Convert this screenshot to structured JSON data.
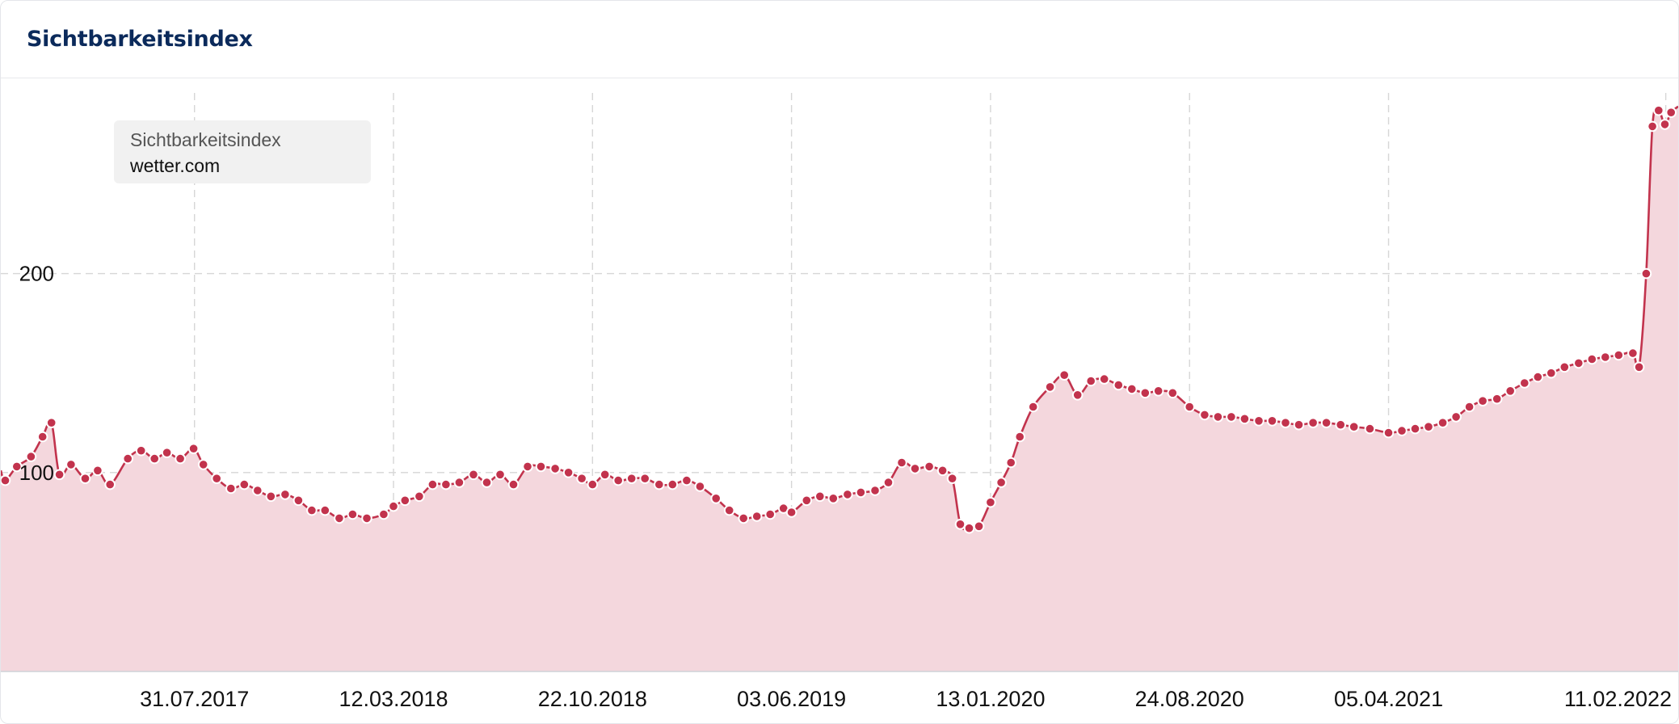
{
  "card": {
    "title": "Sichtbarkeitsindex"
  },
  "legend": {
    "label": "Sichtbarkeitsindex",
    "site": "wetter.com"
  },
  "colors": {
    "line": "#c2334d",
    "fill": "#f4d7dd",
    "grid": "#d6d6d6",
    "title": "#0b2a5b"
  },
  "chart_data": {
    "type": "area",
    "ylim": [
      0,
      290
    ],
    "y_ticks": [
      100,
      200
    ],
    "x_ticks": [
      "31.07.2017",
      "12.03.2018",
      "22.10.2018",
      "03.06.2019",
      "13.01.2020",
      "24.08.2020",
      "05.04.2021",
      "11.02.2022"
    ],
    "x_range": [
      "2016-12-25",
      "2022-02-25"
    ],
    "grid": true,
    "legend_position": "top-left",
    "series": [
      {
        "name": "wetter.com",
        "points": [
          [
            "2016-12-25",
            101
          ],
          [
            "2016-12-30",
            96
          ],
          [
            "2017-01-12",
            103
          ],
          [
            "2017-01-28",
            108
          ],
          [
            "2017-02-10",
            118
          ],
          [
            "2017-02-20",
            125
          ],
          [
            "2017-03-01",
            99
          ],
          [
            "2017-03-14",
            104
          ],
          [
            "2017-03-30",
            97
          ],
          [
            "2017-04-13",
            101
          ],
          [
            "2017-04-27",
            94
          ],
          [
            "2017-05-17",
            107
          ],
          [
            "2017-06-01",
            111
          ],
          [
            "2017-06-16",
            107
          ],
          [
            "2017-06-30",
            110
          ],
          [
            "2017-07-15",
            107
          ],
          [
            "2017-07-30",
            112
          ],
          [
            "2017-08-10",
            104
          ],
          [
            "2017-08-25",
            97
          ],
          [
            "2017-09-10",
            92
          ],
          [
            "2017-09-25",
            94
          ],
          [
            "2017-10-10",
            91
          ],
          [
            "2017-10-25",
            88
          ],
          [
            "2017-11-10",
            89
          ],
          [
            "2017-11-25",
            86
          ],
          [
            "2017-12-10",
            81
          ],
          [
            "2017-12-25",
            81
          ],
          [
            "2018-01-10",
            77
          ],
          [
            "2018-01-25",
            79
          ],
          [
            "2018-02-10",
            77
          ],
          [
            "2018-03-01",
            79
          ],
          [
            "2018-03-12",
            83
          ],
          [
            "2018-03-25",
            86
          ],
          [
            "2018-04-10",
            88
          ],
          [
            "2018-04-25",
            94
          ],
          [
            "2018-05-10",
            94
          ],
          [
            "2018-05-25",
            95
          ],
          [
            "2018-06-10",
            99
          ],
          [
            "2018-06-25",
            95
          ],
          [
            "2018-07-10",
            99
          ],
          [
            "2018-07-25",
            94
          ],
          [
            "2018-08-10",
            103
          ],
          [
            "2018-08-25",
            103
          ],
          [
            "2018-09-10",
            102
          ],
          [
            "2018-09-25",
            100
          ],
          [
            "2018-10-10",
            97
          ],
          [
            "2018-10-22",
            94
          ],
          [
            "2018-11-05",
            99
          ],
          [
            "2018-11-20",
            96
          ],
          [
            "2018-12-05",
            97
          ],
          [
            "2018-12-20",
            97
          ],
          [
            "2019-01-05",
            94
          ],
          [
            "2019-01-20",
            94
          ],
          [
            "2019-02-05",
            96
          ],
          [
            "2019-02-20",
            93
          ],
          [
            "2019-03-10",
            87
          ],
          [
            "2019-03-25",
            81
          ],
          [
            "2019-04-10",
            77
          ],
          [
            "2019-04-25",
            78
          ],
          [
            "2019-05-10",
            79
          ],
          [
            "2019-05-25",
            82
          ],
          [
            "2019-06-03",
            80
          ],
          [
            "2019-06-20",
            86
          ],
          [
            "2019-07-05",
            88
          ],
          [
            "2019-07-20",
            87
          ],
          [
            "2019-08-05",
            89
          ],
          [
            "2019-08-20",
            90
          ],
          [
            "2019-09-05",
            91
          ],
          [
            "2019-09-20",
            95
          ],
          [
            "2019-10-05",
            105
          ],
          [
            "2019-10-20",
            102
          ],
          [
            "2019-11-05",
            103
          ],
          [
            "2019-11-20",
            101
          ],
          [
            "2019-12-01",
            97
          ],
          [
            "2019-12-10",
            74
          ],
          [
            "2019-12-20",
            72
          ],
          [
            "2019-12-31",
            73
          ],
          [
            "2020-01-13",
            85
          ],
          [
            "2020-01-25",
            95
          ],
          [
            "2020-02-05",
            105
          ],
          [
            "2020-02-15",
            118
          ],
          [
            "2020-03-01",
            133
          ],
          [
            "2020-03-20",
            143
          ],
          [
            "2020-04-05",
            149
          ],
          [
            "2020-04-20",
            139
          ],
          [
            "2020-05-05",
            146
          ],
          [
            "2020-05-20",
            147
          ],
          [
            "2020-06-05",
            144
          ],
          [
            "2020-06-20",
            142
          ],
          [
            "2020-07-05",
            140
          ],
          [
            "2020-07-20",
            141
          ],
          [
            "2020-08-05",
            140
          ],
          [
            "2020-08-24",
            133
          ],
          [
            "2020-09-10",
            129
          ],
          [
            "2020-09-25",
            128
          ],
          [
            "2020-10-10",
            128
          ],
          [
            "2020-10-25",
            127
          ],
          [
            "2020-11-10",
            126
          ],
          [
            "2020-11-25",
            126
          ],
          [
            "2020-12-10",
            125
          ],
          [
            "2020-12-25",
            124
          ],
          [
            "2021-01-10",
            125
          ],
          [
            "2021-01-25",
            125
          ],
          [
            "2021-02-10",
            124
          ],
          [
            "2021-02-25",
            123
          ],
          [
            "2021-03-15",
            122
          ],
          [
            "2021-04-05",
            120
          ],
          [
            "2021-04-20",
            121
          ],
          [
            "2021-05-05",
            122
          ],
          [
            "2021-05-20",
            123
          ],
          [
            "2021-06-05",
            125
          ],
          [
            "2021-06-20",
            128
          ],
          [
            "2021-07-05",
            133
          ],
          [
            "2021-07-20",
            136
          ],
          [
            "2021-08-05",
            137
          ],
          [
            "2021-08-20",
            141
          ],
          [
            "2021-09-05",
            145
          ],
          [
            "2021-09-20",
            148
          ],
          [
            "2021-10-05",
            150
          ],
          [
            "2021-10-20",
            153
          ],
          [
            "2021-11-05",
            155
          ],
          [
            "2021-11-20",
            157
          ],
          [
            "2021-12-05",
            158
          ],
          [
            "2021-12-20",
            159
          ],
          [
            "2022-01-05",
            160
          ],
          [
            "2022-01-12",
            153
          ],
          [
            "2022-01-20",
            200
          ],
          [
            "2022-01-27",
            274
          ],
          [
            "2022-02-03",
            282
          ],
          [
            "2022-02-10",
            275
          ],
          [
            "2022-02-17",
            281
          ],
          [
            "2022-02-25",
            284
          ]
        ]
      }
    ]
  }
}
